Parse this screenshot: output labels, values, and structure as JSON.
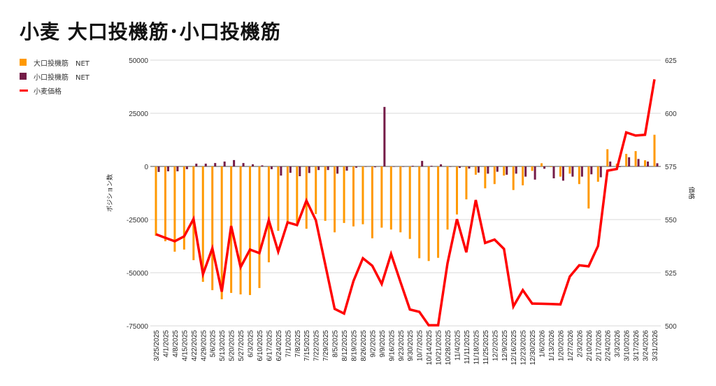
{
  "chart_data": {
    "type": "bar+line",
    "title": "小麦 大口投機筋･小口投機筋",
    "ylabel": "ポジション数",
    "y2label": "価格",
    "ylim": [
      -75000,
      50000
    ],
    "yticks": [
      50000,
      25000,
      0,
      -25000,
      -50000,
      -75000
    ],
    "y2lim": [
      500,
      625
    ],
    "y2ticks": [
      625,
      600,
      575,
      550,
      525,
      500
    ],
    "grid": true,
    "legend_position": "left",
    "colors": {
      "large": "#ff9900",
      "small": "#741b47",
      "price": "#ff0000"
    },
    "categories": [
      "3/25/2025",
      "4/1/2025",
      "4/8/2025",
      "4/15/2025",
      "4/22/2025",
      "4/29/2025",
      "5/6/2025",
      "5/13/2025",
      "5/20/2025",
      "5/27/2025",
      "6/3/2025",
      "6/10/2025",
      "6/17/2025",
      "6/24/2025",
      "7/1/2025",
      "7/8/2025",
      "7/15/2025",
      "7/22/2025",
      "7/29/2025",
      "8/5/2025",
      "8/12/2025",
      "8/19/2025",
      "8/26/2025",
      "9/2/2025",
      "9/9/2025",
      "9/16/2025",
      "9/23/2025",
      "9/30/2025",
      "10/7/2025",
      "10/14/2025",
      "10/21/2025",
      "10/28/2025",
      "11/4/2025",
      "11/11/2025",
      "11/18/2025",
      "11/25/2025",
      "12/2/2025",
      "12/9/2025",
      "12/16/2025",
      "12/23/2025",
      "12/30/2025",
      "1/6/2026",
      "1/13/2026",
      "1/20/2026",
      "1/27/2026",
      "2/3/2026",
      "2/10/2026",
      "2/17/2026",
      "2/24/2026",
      "3/3/2026",
      "3/10/2026",
      "3/17/2026",
      "3/24/2026",
      "3/31/2026"
    ],
    "series": [
      {
        "name": "大口投機筋　NET",
        "type": "bar",
        "axis": "left",
        "values": [
          -32600,
          -35200,
          -40100,
          -39100,
          -44100,
          -54300,
          -58200,
          -62500,
          -59500,
          -60200,
          -60500,
          -57200,
          -45100,
          -30300,
          -26300,
          -26600,
          -29300,
          -22400,
          -25600,
          -31000,
          -26600,
          -28200,
          -27200,
          -33800,
          -28800,
          -29700,
          -31000,
          -34100,
          -43200,
          -44500,
          -43000,
          -29700,
          -22600,
          -15500,
          -3900,
          -10300,
          -8300,
          -4300,
          -11100,
          -8900,
          -2100,
          1500,
          -300,
          -4800,
          -3400,
          -8300,
          -19800,
          -7200,
          8100,
          1300,
          5900,
          7200,
          2900,
          14900
        ]
      },
      {
        "name": "小口投機筋　NET",
        "type": "bar",
        "axis": "left",
        "values": [
          -2600,
          -2300,
          -2300,
          -1300,
          1300,
          1300,
          1600,
          2300,
          3000,
          1600,
          1000,
          500,
          -1300,
          -4300,
          -3000,
          -4600,
          -3100,
          -1700,
          -1700,
          -3400,
          -2000,
          -600,
          0,
          -400,
          28000,
          0,
          0,
          300,
          2600,
          300,
          1000,
          0,
          -700,
          -1000,
          -2900,
          -3400,
          -2500,
          -3900,
          -3400,
          -4800,
          -6200,
          -1100,
          -5600,
          -6700,
          -4800,
          -4800,
          -3700,
          -5100,
          2300,
          -300,
          4300,
          3500,
          2300,
          1500
        ]
      },
      {
        "name": "小麦価格",
        "type": "line",
        "axis": "right",
        "values": [
          543.1,
          541.4,
          539.8,
          542.1,
          550.3,
          524.3,
          536.5,
          516.1,
          547.0,
          527.6,
          535.9,
          534.2,
          549.7,
          534.9,
          548.7,
          547.4,
          558.9,
          549.7,
          528.8,
          508.0,
          505.8,
          521.1,
          531.8,
          528.3,
          519.7,
          533.8,
          520.6,
          507.7,
          506.6,
          500.3,
          500.3,
          529.4,
          550.2,
          534.6,
          559.2,
          539.0,
          540.6,
          536.2,
          509.1,
          516.8,
          510.5,
          510.4,
          510.3,
          510.1,
          523.2,
          528.5,
          528.0,
          537.6,
          573.0,
          573.8,
          591.0,
          589.5,
          589.9,
          616.0
        ]
      }
    ]
  }
}
